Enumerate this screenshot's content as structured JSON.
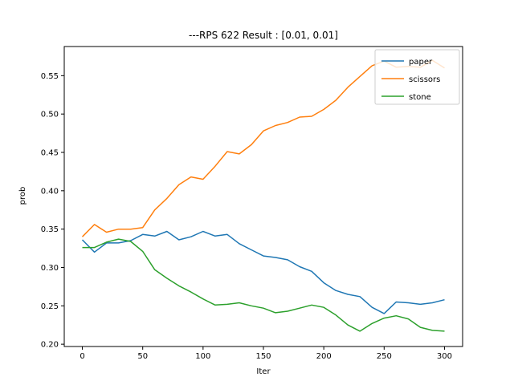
{
  "chart_data": {
    "type": "line",
    "title": "---RPS 622 Result : [0.01, 0.01]",
    "xlabel": "Iter",
    "ylabel": "prob",
    "xlim": [
      -15,
      315
    ],
    "ylim": [
      0.197,
      0.588
    ],
    "xticks": [
      0,
      50,
      100,
      150,
      200,
      250,
      300
    ],
    "yticks": [
      0.2,
      0.25,
      0.3,
      0.35,
      0.4,
      0.45,
      0.5,
      0.55
    ],
    "ytick_labels": [
      "0.20",
      "0.25",
      "0.30",
      "0.35",
      "0.40",
      "0.45",
      "0.50",
      "0.55"
    ],
    "grid": false,
    "legend_position": "top-right",
    "x": [
      0,
      10,
      20,
      30,
      40,
      50,
      60,
      70,
      80,
      90,
      100,
      110,
      120,
      130,
      140,
      150,
      160,
      170,
      180,
      190,
      200,
      210,
      220,
      230,
      240,
      250,
      260,
      270,
      280,
      290,
      300
    ],
    "series": [
      {
        "name": "paper",
        "color": "#1f77b4",
        "values": [
          0.336,
          0.32,
          0.332,
          0.332,
          0.335,
          0.343,
          0.341,
          0.347,
          0.336,
          0.34,
          0.347,
          0.341,
          0.343,
          0.331,
          0.323,
          0.315,
          0.313,
          0.31,
          0.301,
          0.295,
          0.28,
          0.27,
          0.265,
          0.262,
          0.248,
          0.24,
          0.255,
          0.254,
          0.252,
          0.254,
          0.258
        ]
      },
      {
        "name": "scissors",
        "color": "#ff7f0e",
        "values": [
          0.34,
          0.356,
          0.346,
          0.35,
          0.35,
          0.352,
          0.375,
          0.39,
          0.408,
          0.418,
          0.415,
          0.432,
          0.451,
          0.448,
          0.46,
          0.478,
          0.485,
          0.489,
          0.496,
          0.497,
          0.506,
          0.518,
          0.535,
          0.549,
          0.563,
          0.569,
          0.561,
          0.562,
          0.561,
          0.57,
          0.56
        ]
      },
      {
        "name": "stone",
        "color": "#2ca02c",
        "values": [
          0.326,
          0.326,
          0.333,
          0.337,
          0.334,
          0.321,
          0.297,
          0.286,
          0.276,
          0.268,
          0.259,
          0.251,
          0.252,
          0.254,
          0.25,
          0.247,
          0.241,
          0.243,
          0.247,
          0.251,
          0.248,
          0.238,
          0.225,
          0.217,
          0.227,
          0.234,
          0.237,
          0.233,
          0.222,
          0.218,
          0.217
        ]
      }
    ]
  }
}
